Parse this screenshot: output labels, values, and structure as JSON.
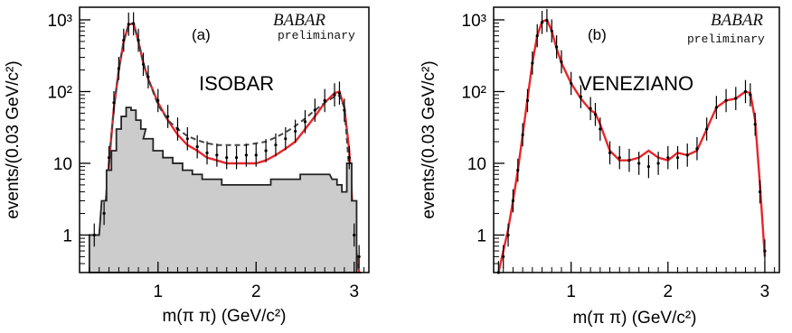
{
  "chart_data": [
    {
      "type": "line",
      "panel_label": "(a)",
      "model_label": "ISOBAR",
      "experiment": "BABAR",
      "status": "preliminary",
      "xlabel": "m(π π) (GeV/c²)",
      "ylabel": "events/(0.03 GeV/c²)",
      "xlim": [
        0.2,
        3.15
      ],
      "ylim": [
        0.3,
        1500
      ],
      "y_scale": "log",
      "x_ticks": [
        "1",
        "2",
        "3"
      ],
      "y_ticks": [
        "1",
        "10",
        "10²",
        "10³"
      ],
      "x": [
        0.35,
        0.45,
        0.5,
        0.55,
        0.6,
        0.65,
        0.7,
        0.75,
        0.8,
        0.85,
        0.9,
        1.0,
        1.1,
        1.2,
        1.3,
        1.4,
        1.5,
        1.6,
        1.7,
        1.8,
        1.9,
        2.0,
        2.1,
        2.2,
        2.3,
        2.4,
        2.5,
        2.6,
        2.7,
        2.8,
        2.85,
        2.9,
        2.95,
        3.0,
        3.05
      ],
      "series": [
        {
          "color": "#e8262a",
          "style": "solid",
          "values": [
            0.3,
            1.5,
            10,
            60,
            200,
            500,
            850,
            900,
            500,
            250,
            150,
            70,
            40,
            25,
            18,
            15,
            12,
            11,
            10,
            10,
            10,
            10,
            11,
            13,
            16,
            20,
            30,
            45,
            70,
            95,
            100,
            60,
            15,
            1,
            0.3
          ]
        },
        {
          "color": "#444444",
          "style": "dashed",
          "values": [
            0.3,
            1.5,
            10,
            60,
            200,
            500,
            850,
            900,
            500,
            250,
            150,
            65,
            40,
            30,
            24,
            21,
            19,
            18,
            18,
            18,
            18,
            19,
            20,
            23,
            27,
            33,
            42,
            55,
            70,
            85,
            88,
            60,
            8,
            1,
            0.3
          ]
        },
        {
          "color": "#222222",
          "style": "histogram",
          "fill": "#cccccc",
          "values": [
            1,
            3,
            8,
            15,
            30,
            45,
            60,
            55,
            40,
            30,
            22,
            15,
            12,
            10,
            8,
            7,
            6,
            6,
            5,
            5,
            5,
            5,
            5,
            6,
            6,
            6,
            7,
            7,
            7,
            6,
            5,
            4,
            10,
            3,
            0.3
          ]
        },
        {
          "color": "#000000",
          "style": "points",
          "values": [
            1,
            2,
            12,
            70,
            210,
            520,
            870,
            880,
            520,
            240,
            160,
            75,
            45,
            30,
            22,
            17,
            14,
            13,
            12,
            12,
            13,
            13,
            15,
            18,
            22,
            28,
            38,
            55,
            75,
            90,
            95,
            55,
            12,
            1,
            0.5
          ]
        }
      ]
    },
    {
      "type": "line",
      "panel_label": "(b)",
      "model_label": "VENEZIANO",
      "experiment": "BABAR",
      "status": "preliminary",
      "xlabel": "m(π π) (GeV/c²)",
      "ylabel": "events/(0.03 GeV/c²)",
      "xlim": [
        0.2,
        3.15
      ],
      "ylim": [
        0.3,
        1500
      ],
      "y_scale": "log",
      "x_ticks": [
        "1",
        "2",
        "3"
      ],
      "y_ticks": [
        "1",
        "10",
        "10²",
        "10³"
      ],
      "x": [
        0.25,
        0.3,
        0.35,
        0.4,
        0.45,
        0.5,
        0.55,
        0.6,
        0.65,
        0.7,
        0.75,
        0.8,
        0.85,
        0.9,
        1.0,
        1.1,
        1.2,
        1.25,
        1.3,
        1.4,
        1.5,
        1.6,
        1.7,
        1.8,
        1.9,
        2.0,
        2.1,
        2.2,
        2.3,
        2.4,
        2.5,
        2.6,
        2.7,
        2.8,
        2.85,
        2.9,
        2.95,
        3.0
      ],
      "series": [
        {
          "color": "#e8262a",
          "style": "solid",
          "values": [
            0.3,
            0.6,
            1.2,
            3,
            8,
            25,
            80,
            250,
            600,
            950,
            1000,
            700,
            400,
            250,
            130,
            80,
            55,
            50,
            35,
            15,
            11,
            11,
            12,
            15,
            12,
            11,
            14,
            13,
            15,
            30,
            60,
            75,
            80,
            100,
            95,
            40,
            5,
            0.5
          ]
        },
        {
          "color": "#000000",
          "style": "points",
          "values": [
            0.3,
            0.5,
            1,
            3,
            8,
            25,
            75,
            250,
            600,
            920,
            980,
            700,
            420,
            260,
            130,
            85,
            58,
            48,
            30,
            14,
            12,
            11,
            10,
            9,
            10,
            12,
            12,
            13,
            16,
            30,
            60,
            75,
            80,
            100,
            90,
            35,
            4,
            0.6
          ]
        }
      ]
    }
  ]
}
